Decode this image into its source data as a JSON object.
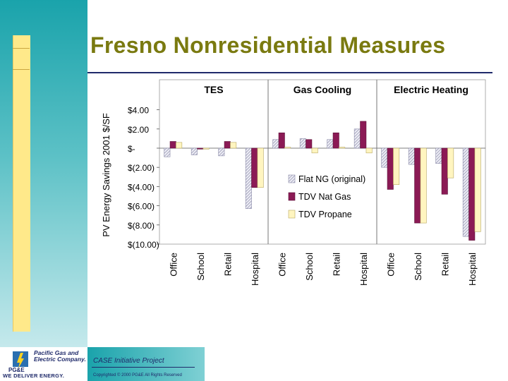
{
  "slide": {
    "title": "Fresno Nonresidential Measures"
  },
  "footer": {
    "project": "CASE Initiative Project",
    "copyright": "Copyrighted © 2000 PG&E All Rights Reserved",
    "company": "Pacific Gas and Electric Company.",
    "slogan": "WE DELIVER ENERGY.",
    "logo_text": "PG&E"
  },
  "colors": {
    "band": "#1aa3ab",
    "accent": "#ffe98a",
    "title": "#7a7a10",
    "navy": "#1f2a6a",
    "flat": "#c8c8dc",
    "tdv_gas": "#8b1a55",
    "tdv_propane": "#fff5c0"
  },
  "chart_data": {
    "type": "bar",
    "ylabel": "PV Energy Savings 2001 $/SF",
    "ylim": [
      -10,
      5
    ],
    "yticks": [
      {
        "value": 4,
        "label": "$4.00"
      },
      {
        "value": 2,
        "label": "$2.00"
      },
      {
        "value": 0,
        "label": "$-"
      },
      {
        "value": -2,
        "label": "$(2.00)"
      },
      {
        "value": -4,
        "label": "$(4.00)"
      },
      {
        "value": -6,
        "label": "$(6.00)"
      },
      {
        "value": -8,
        "label": "$(8.00)"
      },
      {
        "value": -10,
        "label": "$(10.00)"
      }
    ],
    "legend_position": "center",
    "groups": [
      {
        "name": "TES",
        "categories": [
          "Office",
          "School",
          "Retail",
          "Hospital"
        ]
      },
      {
        "name": "Gas Cooling",
        "categories": [
          "Office",
          "School",
          "Retail",
          "Hospital"
        ]
      },
      {
        "name": "Electric Heating",
        "categories": [
          "Office",
          "School",
          "Retail",
          "Hospital"
        ]
      }
    ],
    "series": [
      {
        "name": "Flat NG (original)",
        "values": [
          -0.9,
          -0.7,
          -0.8,
          -6.3,
          0.9,
          1.0,
          0.9,
          2.0,
          -2.0,
          -1.7,
          -1.6,
          -9.2
        ]
      },
      {
        "name": "TDV Nat Gas",
        "values": [
          0.7,
          -0.1,
          0.7,
          -4.1,
          1.6,
          0.9,
          1.6,
          2.8,
          -4.3,
          -7.8,
          -4.8,
          -9.6
        ]
      },
      {
        "name": "TDV Propane",
        "values": [
          0.6,
          -0.1,
          0.6,
          -4.1,
          0.1,
          -0.5,
          0.1,
          -0.5,
          -3.8,
          -7.8,
          -3.1,
          -8.7
        ]
      }
    ]
  }
}
